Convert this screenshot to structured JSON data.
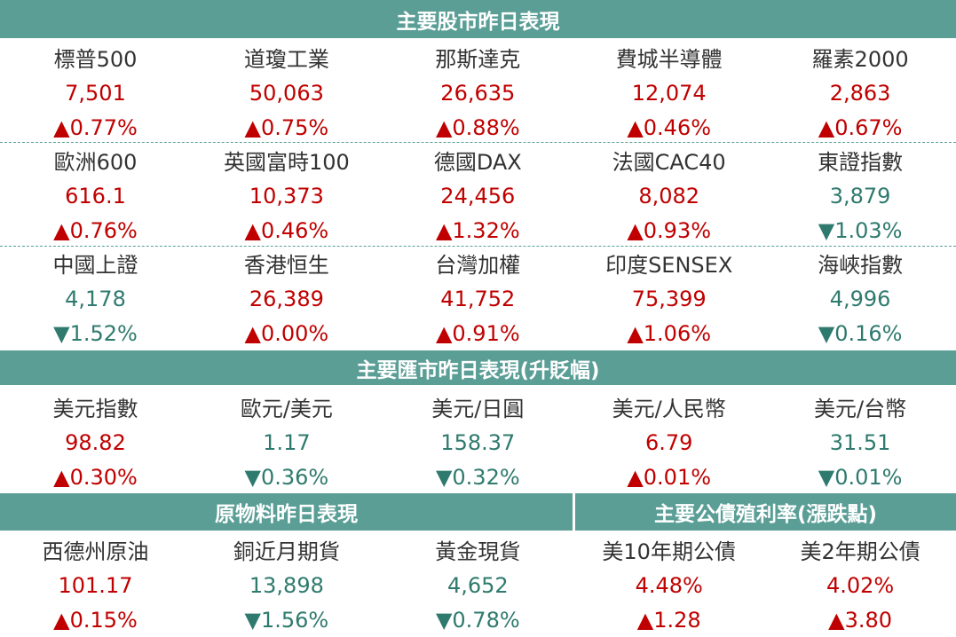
{
  "stocks": {
    "title": "主要股市昨日表現",
    "items": [
      {
        "name": "標普500",
        "value": "7,501",
        "change": "▲0.77%"
      },
      {
        "name": "道瓊工業",
        "value": "50,063",
        "change": "▲0.75%"
      },
      {
        "name": "那斯達克",
        "value": "26,635",
        "change": "▲0.88%"
      },
      {
        "name": "費城半導體",
        "value": "12,074",
        "change": "▲0.46%"
      },
      {
        "name": "羅素2000",
        "value": "2,863",
        "change": "▲0.67%"
      },
      {
        "name": "歐洲600",
        "value": "616.1",
        "change": "▲0.76%"
      },
      {
        "name": "英國富時100",
        "value": "10,373",
        "change": "▲0.46%"
      },
      {
        "name": "德國DAX",
        "value": "24,456",
        "change": "▲1.32%"
      },
      {
        "name": "法國CAC40",
        "value": "8,082",
        "change": "▲0.93%"
      },
      {
        "name": "東證指數",
        "value": "3,879",
        "change": "▼1.03%"
      },
      {
        "name": "中國上證",
        "value": "4,178",
        "change": "▼1.52%"
      },
      {
        "name": "香港恒生",
        "value": "26,389",
        "change": "▲0.00%"
      },
      {
        "name": "台灣加權",
        "value": "41,752",
        "change": "▲0.91%"
      },
      {
        "name": "印度SENSEX",
        "value": "75,399",
        "change": "▲1.06%"
      },
      {
        "name": "海峽指數",
        "value": "4,996",
        "change": "▼0.16%"
      }
    ]
  },
  "fx": {
    "title": "主要匯市昨日表現(升貶幅)",
    "items": [
      {
        "name": "美元指數",
        "value": "98.82",
        "change": "▲0.30%"
      },
      {
        "name": "歐元/美元",
        "value": "1.17",
        "change": "▼0.36%"
      },
      {
        "name": "美元/日圓",
        "value": "158.37",
        "change": "▼0.32%"
      },
      {
        "name": "美元/人民幣",
        "value": "6.79",
        "change": "▲0.01%"
      },
      {
        "name": "美元/台幣",
        "value": "31.51",
        "change": "▼0.01%"
      }
    ]
  },
  "commodities": {
    "title": "原物料昨日表現",
    "items": [
      {
        "name": "西德州原油",
        "value": "101.17",
        "change": "▲0.15%"
      },
      {
        "name": "銅近月期貨",
        "value": "13,898",
        "change": "▼1.56%"
      },
      {
        "name": "黃金現貨",
        "value": "4,652",
        "change": "▼0.78%"
      }
    ]
  },
  "bonds": {
    "title": "主要公債殖利率(漲跌點)",
    "items": [
      {
        "name": "美10年期公債",
        "value": "4.48%",
        "change": "▲1.28"
      },
      {
        "name": "美2年期公債",
        "value": "4.02%",
        "change": "▲3.80"
      }
    ]
  }
}
